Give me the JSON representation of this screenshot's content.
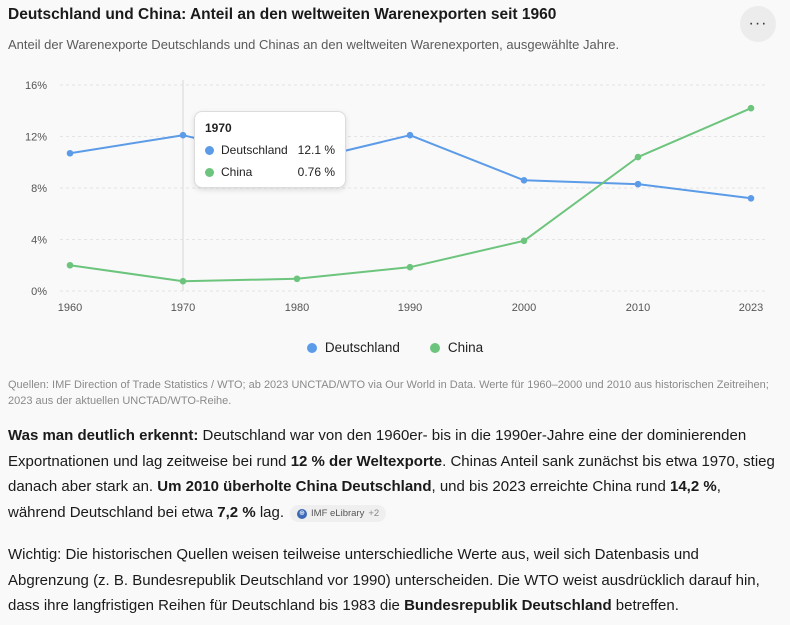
{
  "header": {
    "title": "Deutschland und China: Anteil an den weltweiten Warenexporten seit 1960",
    "subtitle": "Anteil der Warenexporte Deutschlands und Chinas an den weltweiten Warenexporten, ausgewählte Jahre.",
    "more_label": "···"
  },
  "chart_data": {
    "type": "line",
    "title": "Deutschland und China: Anteil an den weltweiten Warenexporten seit 1960",
    "subtitle": "Anteil der Warenexporte Deutschlands und Chinas an den weltweiten Warenexporten, ausgewählte Jahre.",
    "categories": [
      "1960",
      "1970",
      "1980",
      "1990",
      "2000",
      "2010",
      "2023"
    ],
    "series": [
      {
        "name": "Deutschland",
        "color": "#5b9be8",
        "values": [
          10.7,
          12.1,
          10.0,
          12.1,
          8.6,
          8.3,
          7.2
        ]
      },
      {
        "name": "China",
        "color": "#6cc47d",
        "values": [
          2.0,
          0.76,
          0.95,
          1.85,
          3.9,
          10.4,
          14.2
        ]
      }
    ],
    "y_ticks": [
      "0%",
      "4%",
      "8%",
      "12%",
      "16%"
    ],
    "ylim": [
      0,
      16
    ],
    "grid": true,
    "legend_position": "bottom",
    "tooltip": {
      "year": "1970",
      "rows": [
        {
          "name": "Deutschland",
          "value": "12.1 %"
        },
        {
          "name": "China",
          "value": "0.76 %"
        }
      ]
    }
  },
  "sources": "Quellen: IMF Direction of Trade Statistics / WTO; ab 2023 UNCTAD/WTO via Our World in Data. Werte für 1960–2000 und 2010 aus historischen Zeitreihen; 2023 aus der aktuellen UNCTAD/WTO-Reihe.",
  "paragraph1": {
    "b1": "Was man deutlich erkennt:",
    "t1": " Deutschland war von den 1960er- bis in die 1990er-Jahre eine der dominierenden Exportnationen und lag zeitweise bei rund ",
    "b2": "12 % der Weltexporte",
    "t2": ". Chinas Anteil sank zunächst bis etwa 1970, stieg danach aber stark an. ",
    "b3": "Um 2010 überholte China Deutschland",
    "t3": ", und bis 2023 erreichte China rund ",
    "b4": "14,2 %",
    "t4": ", während Deutschland bei etwa ",
    "b5": "7,2 %",
    "t5": " lag.",
    "chip_label": "IMF eLibrary",
    "chip_count": "+2"
  },
  "paragraph2": {
    "t1": "Wichtig: Die historischen Quellen weisen teilweise unterschiedliche Werte aus, weil sich Datenbasis und Abgrenzung (z. B. Bundesrepublik Deutschland vor 1990) unterscheiden. Die WTO weist ausdrücklich darauf hin, dass ihre langfristigen Reihen für Deutschland bis 1983 die ",
    "b1": "Bundesrepublik Deutschland",
    "t2": " betreffen."
  }
}
